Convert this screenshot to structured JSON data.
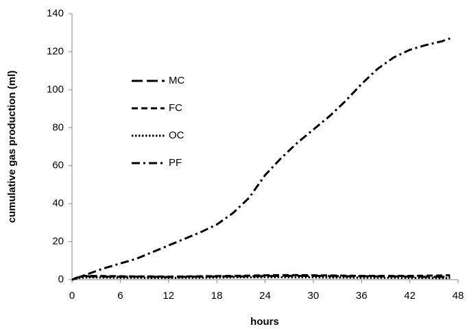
{
  "chart_data": {
    "type": "line",
    "x_label": "hours",
    "y_label": "cumulative gas production (ml)",
    "x": [
      0,
      1,
      2,
      4,
      6,
      8,
      10,
      12,
      14,
      16,
      18,
      20,
      22,
      24,
      26,
      28,
      30,
      32,
      34,
      36,
      38,
      40,
      42,
      44,
      46,
      47
    ],
    "series": [
      {
        "name": "MC",
        "color": "#000000",
        "dash": "long-dash",
        "values": [
          0,
          1.5,
          1.8,
          1.6,
          1.5,
          1.6,
          1.5,
          1.4,
          1.5,
          1.6,
          1.7,
          1.7,
          1.8,
          1.9,
          2,
          2,
          2,
          1.9,
          1.8,
          1.8,
          1.7,
          1.7,
          1.6,
          1.5,
          1.5,
          1.4
        ]
      },
      {
        "name": "FC",
        "color": "#000000",
        "dash": "dash",
        "values": [
          0,
          1.8,
          2,
          1.9,
          1.8,
          1.7,
          1.7,
          1.6,
          1.7,
          1.8,
          1.9,
          2,
          2.1,
          2.3,
          2.4,
          2.4,
          2.3,
          2.2,
          2.1,
          2,
          2,
          2,
          2,
          2.1,
          2.2,
          2.3
        ]
      },
      {
        "name": "OC",
        "color": "#000000",
        "dash": "dot",
        "values": [
          0,
          1,
          1.2,
          1.1,
          1,
          1,
          0.9,
          0.9,
          1,
          1,
          1.1,
          1.2,
          1.2,
          1.3,
          1.3,
          1.2,
          1.2,
          1.1,
          1.1,
          1,
          1,
          1,
          0.9,
          0.9,
          0.8,
          0.8
        ]
      },
      {
        "name": "PF",
        "color": "#000000",
        "dash": "dash-dot",
        "values": [
          0,
          1.5,
          3,
          6,
          8.5,
          11,
          14.5,
          18,
          21.5,
          25,
          29,
          35,
          43,
          55,
          64,
          72,
          79,
          86,
          94,
          103,
          111,
          117,
          121,
          123.5,
          125.5,
          127
        ]
      }
    ],
    "xlim": [
      0,
      48
    ],
    "xticks": [
      0,
      6,
      12,
      18,
      24,
      30,
      36,
      42,
      48
    ],
    "ylim": [
      0,
      140
    ],
    "yticks": [
      0,
      20,
      40,
      60,
      80,
      100,
      120,
      140
    ],
    "grid": false,
    "legend": "upper-left"
  }
}
